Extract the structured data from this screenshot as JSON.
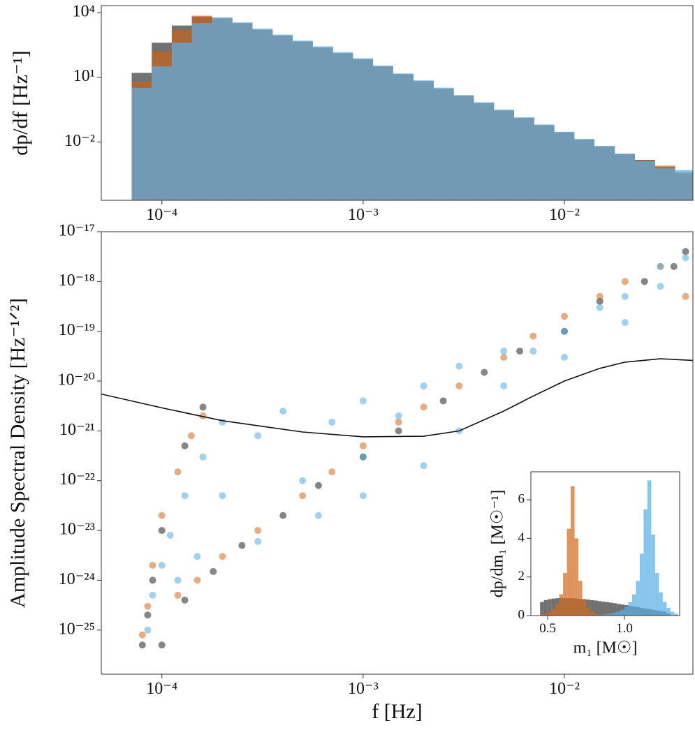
{
  "chart_data": [
    {
      "type": "histogram",
      "ylabel": "dp/df [Hz⁻¹]",
      "xscale": "log",
      "yscale": "log",
      "xlim": [
        5e-05,
        0.0435
      ],
      "ylim": [
        2e-05,
        21000
      ],
      "xticks": [
        {
          "value": 0.0001,
          "label": "10⁻⁴"
        },
        {
          "value": 0.001,
          "label": "10⁻³"
        },
        {
          "value": 0.01,
          "label": "10⁻²"
        }
      ],
      "yticks": [
        {
          "value": 10000,
          "label": "10⁴"
        },
        {
          "value": 10,
          "label": "10¹"
        },
        {
          "value": 0.01,
          "label": "10⁻²"
        }
      ],
      "bins": [
        7.08e-05,
        8.91e-05,
        0.000112,
        0.000141,
        0.000178,
        0.000224,
        0.000282,
        0.000355,
        0.000447,
        0.000562,
        0.000708,
        0.000891,
        0.00112,
        0.00141,
        0.00178,
        0.00224,
        0.00282,
        0.00355,
        0.00447,
        0.00562,
        0.00708,
        0.00891,
        0.0112,
        0.0141,
        0.0178,
        0.0224,
        0.0282,
        0.0355,
        0.0435
      ],
      "series": [
        {
          "color": "#3a3a3a",
          "values": [
            16,
            400,
            2500,
            6300,
            5000,
            3200,
            1600,
            850,
            450,
            240,
            130,
            69,
            32,
            14,
            6.6,
            3.0,
            1.4,
            0.63,
            0.29,
            0.13,
            0.06,
            0.028,
            0.013,
            0.0063,
            0.0028,
            0.0015,
            0.0007,
            0.00035
          ]
        },
        {
          "color": "#c8641e",
          "values": [
            6.3,
            160,
            1600,
            7100,
            5600,
            3200,
            1600,
            850,
            450,
            240,
            130,
            69,
            32,
            14,
            6.6,
            3.0,
            1.4,
            0.63,
            0.29,
            0.13,
            0.06,
            0.028,
            0.013,
            0.0063,
            0.0028,
            0.0014,
            0.0008,
            0.0004
          ]
        },
        {
          "color": "#5aaee6",
          "values": [
            3.2,
            32,
            400,
            3200,
            6000,
            3500,
            1800,
            950,
            500,
            270,
            145,
            76,
            35,
            15,
            7.2,
            3.3,
            1.5,
            0.7,
            0.32,
            0.14,
            0.065,
            0.03,
            0.014,
            0.0066,
            0.0029,
            0.0013,
            0.0006,
            0.0005
          ]
        }
      ]
    },
    {
      "type": "scatter",
      "xlabel": "f [Hz]",
      "ylabel": "Amplitude Spectral Density [Hz⁻¹ᐟ²]",
      "xscale": "log",
      "yscale": "log",
      "xlim": [
        5e-05,
        0.0435
      ],
      "ylim": [
        1.3e-26,
        1e-17
      ],
      "xticks": [
        {
          "value": 0.0001,
          "label": "10⁻⁴"
        },
        {
          "value": 0.001,
          "label": "10⁻³"
        },
        {
          "value": 0.01,
          "label": "10⁻²"
        }
      ],
      "yticks": [
        {
          "value": 1e-17,
          "label": "10⁻¹⁷"
        },
        {
          "value": 1e-18,
          "label": "10⁻¹⁸"
        },
        {
          "value": 1e-19,
          "label": "10⁻¹⁹"
        },
        {
          "value": 1e-20,
          "label": "10⁻²⁰"
        },
        {
          "value": 1e-21,
          "label": "10⁻²¹"
        },
        {
          "value": 1e-22,
          "label": "10⁻²²"
        },
        {
          "value": 1e-23,
          "label": "10⁻²³"
        },
        {
          "value": 1e-24,
          "label": "10⁻²⁴"
        },
        {
          "value": 1e-25,
          "label": "10⁻²⁵"
        }
      ],
      "series": [
        {
          "color": "#222222",
          "x": [
            8e-05,
            8.5e-05,
            9e-05,
            0.0001,
            0.00013,
            0.00016,
            0.0001,
            0.00013,
            0.00018,
            0.00025,
            0.0004,
            0.0006,
            0.001,
            0.0015,
            0.0025,
            0.004,
            0.006,
            0.01,
            0.015,
            0.025,
            0.035,
            0.04
          ],
          "y": [
            5e-26,
            2e-25,
            1e-24,
            1e-23,
            5e-22,
            3e-21,
            5e-26,
            4e-25,
            1.5e-24,
            5e-24,
            2e-23,
            8e-23,
            3e-22,
            1e-21,
            4e-21,
            1.5e-20,
            4e-20,
            1e-19,
            4e-19,
            1e-18,
            2e-18,
            4e-18
          ]
        },
        {
          "color": "#d2691e",
          "x": [
            8e-05,
            8.5e-05,
            9e-05,
            0.0001,
            0.00012,
            0.00014,
            0.00016,
            0.00012,
            0.00015,
            0.0002,
            0.0003,
            0.0005,
            0.0007,
            0.001,
            0.0015,
            0.002,
            0.003,
            0.005,
            0.007,
            0.01,
            0.015,
            0.02,
            0.03,
            0.04
          ],
          "y": [
            8e-26,
            3e-25,
            2e-24,
            2e-23,
            1.5e-22,
            8e-22,
            2e-21,
            5e-25,
            1e-24,
            3e-24,
            1e-23,
            5e-23,
            1.5e-22,
            5e-22,
            1.5e-21,
            3e-21,
            8e-21,
            3e-20,
            8e-20,
            2e-19,
            5e-19,
            1e-18,
            2e-18,
            5e-19
          ]
        },
        {
          "color": "#55a9e2",
          "x": [
            8.5e-05,
            9e-05,
            0.0001,
            0.00011,
            0.00013,
            0.00016,
            0.0002,
            0.00012,
            0.00015,
            0.0002,
            0.0003,
            0.0004,
            0.0003,
            0.0005,
            0.0007,
            0.001,
            0.0006,
            0.001,
            0.001,
            0.0015,
            0.002,
            0.002,
            0.003,
            0.003,
            0.005,
            0.005,
            0.007,
            0.01,
            0.01,
            0.015,
            0.02,
            0.02,
            0.03,
            0.03,
            0.04
          ],
          "y": [
            1e-25,
            5e-25,
            2e-24,
            8e-24,
            5e-23,
            3e-22,
            1.5e-21,
            1e-24,
            3e-24,
            5e-23,
            8e-22,
            2.5e-21,
            6e-24,
            1e-22,
            1.5e-21,
            4e-21,
            2e-23,
            3e-22,
            5e-23,
            2e-21,
            8e-21,
            2e-22,
            1e-21,
            2e-20,
            8e-21,
            4e-20,
            4e-20,
            1e-19,
            3e-20,
            3e-19,
            5e-19,
            1.5e-19,
            2e-18,
            8e-19,
            3e-18
          ]
        }
      ],
      "lines": [
        {
          "color": "#111111",
          "x": [
            5e-05,
            0.0001,
            0.0002,
            0.0005,
            0.001,
            0.002,
            0.003,
            0.005,
            0.007,
            0.01,
            0.015,
            0.02,
            0.03,
            0.0435
          ],
          "y": [
            5.5e-21,
            2.9e-21,
            1.6e-21,
            9.5e-22,
            7.6e-22,
            7.8e-22,
            1e-21,
            2.5e-21,
            5e-21,
            1e-20,
            1.8e-20,
            2.4e-20,
            2.8e-20,
            2.6e-20
          ]
        }
      ]
    },
    {
      "type": "histogram",
      "xlabel": "m₁ [M☉]",
      "ylabel": "dp/dm₁ [M☉⁻¹]",
      "xscale": "linear",
      "yscale": "linear",
      "xlim": [
        0.39,
        1.36
      ],
      "ylim": [
        0,
        7.45
      ],
      "xticks": [
        0.5,
        {
          "value": 1,
          "label": "1.0"
        }
      ],
      "yticks": [
        0,
        2,
        4,
        6
      ],
      "bins": [
        0.4,
        0.425,
        0.45,
        0.475,
        0.5,
        0.525,
        0.55,
        0.575,
        0.6,
        0.625,
        0.65,
        0.675,
        0.7,
        0.725,
        0.75,
        0.775,
        0.8,
        0.825,
        0.85,
        0.875,
        0.9,
        0.925,
        0.95,
        0.975,
        1.0,
        1.025,
        1.05,
        1.075,
        1.1,
        1.125,
        1.15,
        1.175,
        1.2,
        1.225,
        1.25,
        1.275,
        1.3,
        1.325,
        1.35
      ],
      "series": [
        {
          "color": "#3a3a3a",
          "values": [
            0,
            0,
            0.7,
            0.8,
            0.85,
            0.88,
            0.9,
            0.9,
            0.9,
            0.9,
            0.9,
            0.88,
            0.86,
            0.85,
            0.83,
            0.8,
            0.78,
            0.75,
            0.72,
            0.7,
            0.67,
            0.64,
            0.6,
            0.57,
            0.54,
            0.5,
            0.47,
            0.44,
            0.4,
            0.37,
            0.34,
            0.3,
            0.27,
            0.23,
            0.2,
            0.1,
            0,
            0
          ]
        },
        {
          "color": "#d2691e",
          "values": [
            0,
            0,
            0.05,
            0.1,
            0.2,
            0.35,
            0.6,
            1.1,
            2.2,
            4.5,
            6.7,
            4.0,
            1.8,
            0.8,
            0.4,
            0.2,
            0.1,
            0.05,
            0,
            0,
            0,
            0,
            0,
            0,
            0,
            0,
            0,
            0,
            0,
            0,
            0,
            0,
            0,
            0,
            0,
            0,
            0,
            0
          ]
        },
        {
          "color": "#5aaee6",
          "values": [
            0,
            0,
            0,
            0,
            0,
            0,
            0,
            0,
            0,
            0,
            0,
            0,
            0,
            0,
            0,
            0,
            0,
            0,
            0.05,
            0.08,
            0.1,
            0.15,
            0.2,
            0.3,
            0.45,
            0.7,
            1.1,
            1.8,
            3.2,
            5.5,
            7.0,
            4.2,
            2.2,
            1.2,
            0.7,
            0.4,
            0.2,
            0.1
          ]
        }
      ]
    }
  ]
}
